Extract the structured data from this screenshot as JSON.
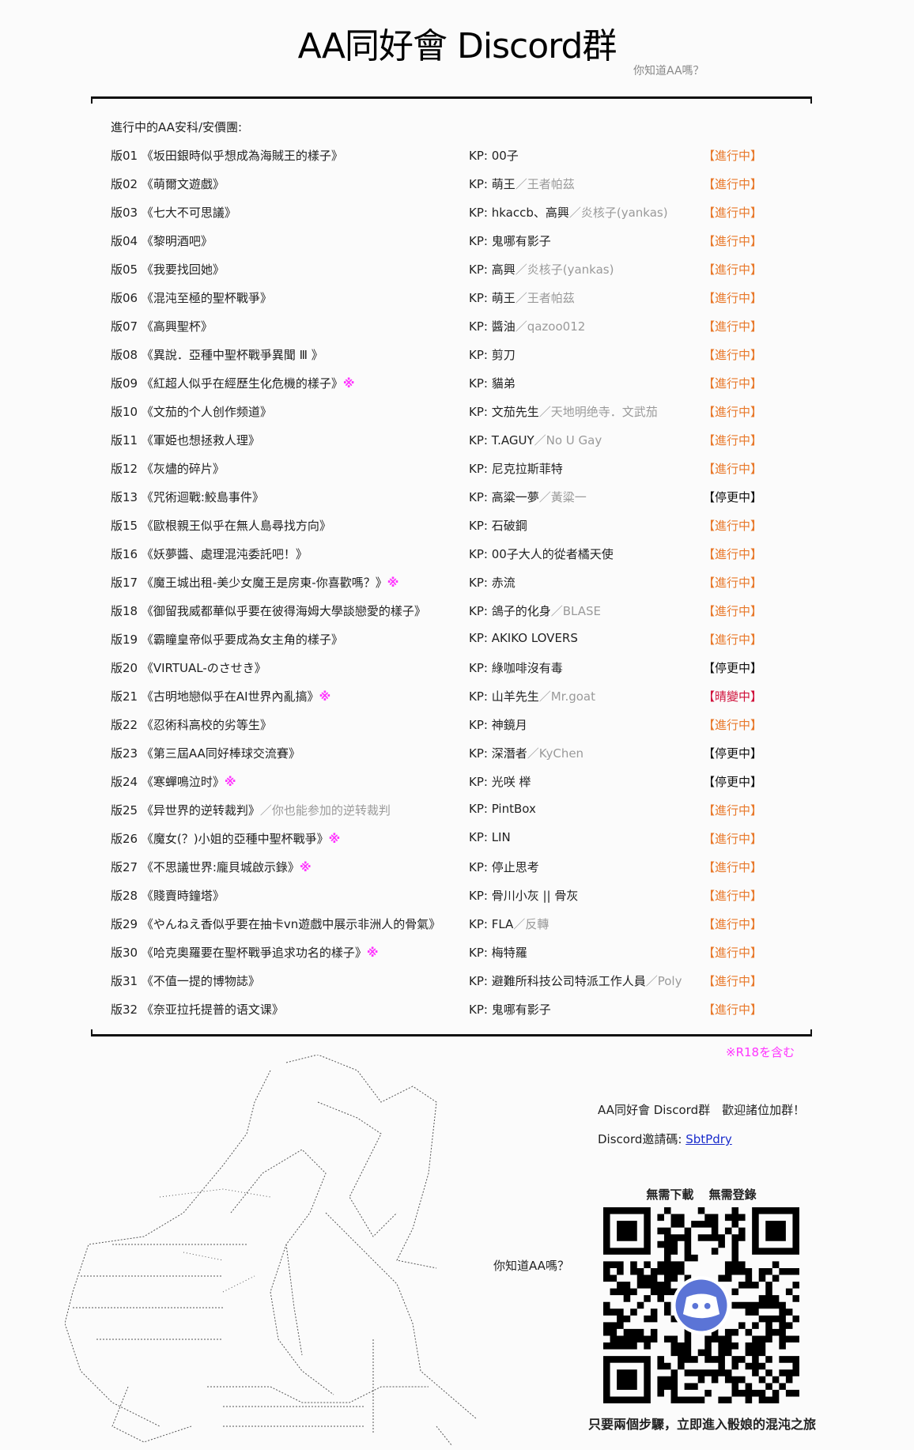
{
  "header": {
    "title": "AA同好會 Discord群",
    "subtitle": "你知道AA嗎？"
  },
  "list": {
    "heading": "進行中的AA安科/安價團:",
    "rows": [
      {
        "no": "版01",
        "title": "《坂田銀時似乎想成為海賊王的樣子》",
        "extra": "",
        "r18": "",
        "kp": "KP: 00子",
        "kp_alt": "",
        "status": "【進行中】",
        "state": "active"
      },
      {
        "no": "版02",
        "title": "《萌爾文遊戲》",
        "extra": "",
        "r18": "",
        "kp": "KP: 萌王",
        "kp_alt": "／王者帕茲",
        "status": "【進行中】",
        "state": "active"
      },
      {
        "no": "版03",
        "title": "《七大不可思議》",
        "extra": "",
        "r18": "",
        "kp": "KP: hkaccb、高興",
        "kp_alt": "／炎核子(yankas)",
        "status": "【進行中】",
        "state": "active"
      },
      {
        "no": "版04",
        "title": "《黎明酒吧》",
        "extra": "",
        "r18": "",
        "kp": "KP: 鬼哪有影子",
        "kp_alt": "",
        "status": "【進行中】",
        "state": "active"
      },
      {
        "no": "版05",
        "title": "《我要找回她》",
        "extra": "",
        "r18": "",
        "kp": "KP: 高興",
        "kp_alt": "／炎核子(yankas)",
        "status": "【進行中】",
        "state": "active"
      },
      {
        "no": "版06",
        "title": "《混沌至極的聖杯戰爭》",
        "extra": "",
        "r18": "",
        "kp": "KP: 萌王",
        "kp_alt": "／王者帕茲",
        "status": "【進行中】",
        "state": "active"
      },
      {
        "no": "版07",
        "title": "《高興聖杯》",
        "extra": "",
        "r18": "",
        "kp": "KP: 醬油",
        "kp_alt": "／qazoo012",
        "status": "【進行中】",
        "state": "active"
      },
      {
        "no": "版08",
        "title": "《異說．亞種中聖杯戰爭異聞 Ⅲ 》",
        "extra": "",
        "r18": "",
        "kp": "KP: 剪刀",
        "kp_alt": "",
        "status": "【進行中】",
        "state": "active"
      },
      {
        "no": "版09",
        "title": "《紅超人似乎在經歷生化危機的樣子》",
        "extra": "",
        "r18": "※",
        "kp": "KP: 貓弟",
        "kp_alt": "",
        "status": "【進行中】",
        "state": "active"
      },
      {
        "no": "版10",
        "title": "《文茄的个人创作频道》",
        "extra": "",
        "r18": "",
        "kp": "KP: 文茄先生",
        "kp_alt": "／天地明绝寺．文武茄",
        "status": "【進行中】",
        "state": "active"
      },
      {
        "no": "版11",
        "title": "《軍姫也想拯救人理》",
        "extra": "",
        "r18": "",
        "kp": "KP: T.AGUY",
        "kp_alt": "／No U Gay",
        "status": "【進行中】",
        "state": "active"
      },
      {
        "no": "版12",
        "title": "《灰燼的碎片》",
        "extra": "",
        "r18": "",
        "kp": "KP: 尼克拉斯菲特",
        "kp_alt": "",
        "status": "【進行中】",
        "state": "active"
      },
      {
        "no": "版13",
        "title": "《咒術迴戰:鮫島事件》",
        "extra": "",
        "r18": "",
        "kp": "KP: 高粱一夢",
        "kp_alt": "／黃粱一",
        "status": "【停更中】",
        "state": "paused"
      },
      {
        "no": "版15",
        "title": "《歐根親王似乎在無人島尋找方向》",
        "extra": "",
        "r18": "",
        "kp": "KP: 石破鋼",
        "kp_alt": "",
        "status": "【進行中】",
        "state": "active"
      },
      {
        "no": "版16",
        "title": "《妖夢醬、處理混沌委託吧！》",
        "extra": "",
        "r18": "",
        "kp": "KP: 00子大人的從者橘天使",
        "kp_alt": "",
        "status": "【進行中】",
        "state": "active"
      },
      {
        "no": "版17",
        "title": "《魔王城出租-美少女魔王是房東-你喜歡嗎？》",
        "extra": "",
        "r18": "※",
        "kp": "KP: 赤流",
        "kp_alt": "",
        "status": "【進行中】",
        "state": "active"
      },
      {
        "no": "版18",
        "title": "《御留我威都華似乎要在彼得海姆大學談戀愛的樣子》",
        "extra": "",
        "r18": "",
        "kp": "KP: 鴿子的化身",
        "kp_alt": "／BLASE",
        "status": "【進行中】",
        "state": "active"
      },
      {
        "no": "版19",
        "title": "《霸瞳皇帝似乎要成為女主角的樣子》",
        "extra": "",
        "r18": "",
        "kp": "KP: AKIKO LOVERS",
        "kp_alt": "",
        "status": "【進行中】",
        "state": "active"
      },
      {
        "no": "版20",
        "title": "《VIRTUAL-のさせき》",
        "extra": "",
        "r18": "",
        "kp": "KP: 綠咖啡沒有毒",
        "kp_alt": "",
        "status": "【停更中】",
        "state": "paused"
      },
      {
        "no": "版21",
        "title": "《古明地戀似乎在AI世界內亂搞》",
        "extra": "",
        "r18": "※",
        "kp": "KP: 山羊先生",
        "kp_alt": "／Mr.goat",
        "status": "【晴變中】",
        "state": "changed"
      },
      {
        "no": "版22",
        "title": "《忍術科高校的劣等生》",
        "extra": "",
        "r18": "",
        "kp": "KP: 神鏡月",
        "kp_alt": "",
        "status": "【進行中】",
        "state": "active"
      },
      {
        "no": "版23",
        "title": "《第三屆AA同好棒球交流賽》",
        "extra": "",
        "r18": "",
        "kp": "KP: 深潛者",
        "kp_alt": "／KyChen",
        "status": "【停更中】",
        "state": "paused"
      },
      {
        "no": "版24",
        "title": "《寒蟬鳴泣时》",
        "extra": "",
        "r18": "※",
        "kp": "KP: 光咲 榉",
        "kp_alt": "",
        "status": "【停更中】",
        "state": "paused"
      },
      {
        "no": "版25",
        "title": "《异世界的逆转裁判》",
        "extra": "／你也能参加的逆转裁判",
        "r18": "",
        "kp": "KP: PintBox",
        "kp_alt": "",
        "status": "【進行中】",
        "state": "active"
      },
      {
        "no": "版26",
        "title": "《魔女(？)小姐的亞種中聖杯戰爭》",
        "extra": "",
        "r18": "※",
        "kp": "KP: LIN",
        "kp_alt": "",
        "status": "【進行中】",
        "state": "active"
      },
      {
        "no": "版27",
        "title": "《不思議世界:龐貝城啟示錄》",
        "extra": "",
        "r18": "※",
        "kp": "KP: 停止思考",
        "kp_alt": "",
        "status": "【進行中】",
        "state": "active"
      },
      {
        "no": "版28",
        "title": "《賤賣時鐘塔》",
        "extra": "",
        "r18": "",
        "kp": "KP: 骨川小灰 || 骨灰",
        "kp_alt": "",
        "status": "【進行中】",
        "state": "active"
      },
      {
        "no": "版29",
        "title": "《やんねえ香似乎要在抽卡vn遊戲中展示非洲人的骨氣》",
        "extra": "",
        "r18": "",
        "kp": "KP: FLA",
        "kp_alt": "／反轉",
        "status": "【進行中】",
        "state": "active"
      },
      {
        "no": "版30",
        "title": "《哈克奧羅要在聖杯戰爭追求功名的樣子》",
        "extra": "",
        "r18": "※",
        "kp": "KP: 梅特羅",
        "kp_alt": "",
        "status": "【進行中】",
        "state": "active"
      },
      {
        "no": "版31",
        "title": "《不值一提的博物誌》",
        "extra": "",
        "r18": "",
        "kp": "KP: 避難所科技公司特派工作人員",
        "kp_alt": "／Poly",
        "status": "【進行中】",
        "state": "active"
      },
      {
        "no": "版32",
        "title": "《奈亚拉托提普的语文课》",
        "extra": "",
        "r18": "",
        "kp": "KP: 鬼哪有影子",
        "kp_alt": "",
        "status": "【進行中】",
        "state": "active"
      }
    ]
  },
  "note_r18": "※R18を含む",
  "footer": {
    "aa_caption": "你知道AA嗎？",
    "welcome": "AA同好會 Discord群　歡迎諸位加群！",
    "invite_label": "Discord邀請碼:",
    "invite_code": "SbtPdry",
    "qr_top": "無需下載 無需登錄",
    "qr_caption": "只要兩個步驟，立即進入骰娘的混沌之旅",
    "qr_icon": "discord-logo-icon"
  },
  "colors": {
    "active": "#e8782a",
    "paused": "#111111",
    "changed": "#d0103a",
    "r18": "#ff33ff",
    "link": "#1a2ccc",
    "discord": "#5b74d6"
  }
}
